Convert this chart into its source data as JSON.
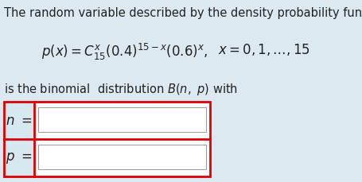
{
  "background_color": "#dce9f0",
  "text_color": "#222222",
  "title_line": "The random variable described by the density probability function",
  "formula_left": "$p(x) = C_{15}^{x}(0.4)^{15-x}(0.6)^{x},$",
  "formula_right": "$x = 0, 1, \\ldots, 15$",
  "subtitle": "is the binomial  distribution $\\mathit{B}(n,\\ p)$ with",
  "label_n": "$n\\ =$",
  "label_p": "$p\\ =$",
  "box_outline_color": "#dd0000",
  "box_fill_color": "#ffffff",
  "label_area_color": "#d8e8f0",
  "inner_line_color": "#999999",
  "title_fontsize": 10.5,
  "formula_fontsize": 12,
  "subtitle_fontsize": 10.5,
  "label_fontsize": 12,
  "fig_width": 4.56,
  "fig_height": 2.29,
  "dpi": 100
}
